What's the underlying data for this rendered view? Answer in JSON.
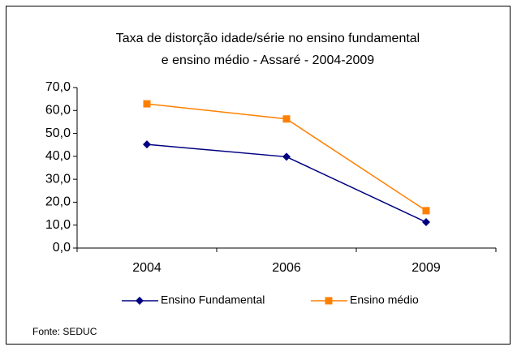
{
  "chart_data": {
    "type": "line",
    "title": [
      "Taxa de distorção idade/série no ensino fundamental",
      "e ensino médio - Assaré - 2004-2009"
    ],
    "categories": [
      "2004",
      "2006",
      "2009"
    ],
    "series": [
      {
        "name": "Ensino Fundamental",
        "color": "#000080",
        "marker": "diamond",
        "values": [
          45.2,
          39.8,
          11.3
        ]
      },
      {
        "name": "Ensino médio",
        "color": "#ff8000",
        "marker": "square",
        "values": [
          62.9,
          56.3,
          16.3
        ]
      }
    ],
    "ylim": [
      0,
      70
    ],
    "yticks": [
      {
        "value": 0,
        "label": "0,0"
      },
      {
        "value": 10,
        "label": "10,0"
      },
      {
        "value": 20,
        "label": "20,0"
      },
      {
        "value": 30,
        "label": "30,0"
      },
      {
        "value": 40,
        "label": "40,0"
      },
      {
        "value": 50,
        "label": "50,0"
      },
      {
        "value": 60,
        "label": "60,0"
      },
      {
        "value": 70,
        "label": "70,0"
      }
    ],
    "grid": false,
    "legend": "bottom",
    "source": "Fonte: SEDUC"
  }
}
